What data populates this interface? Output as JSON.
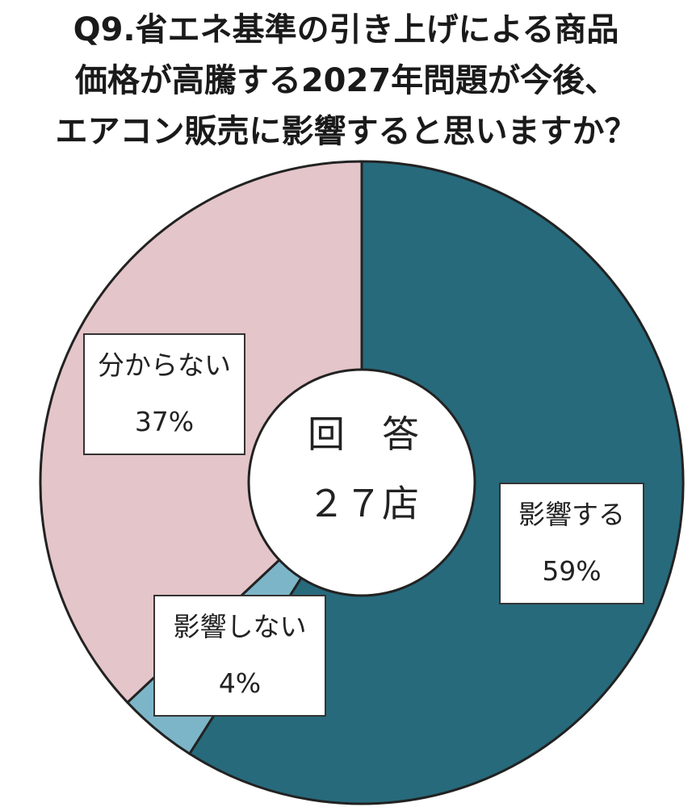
{
  "title_lines": [
    "Q9.省エネ基準の引き上げによる商品",
    "価格が高騰する2027年問題が今後、",
    "エアコン販売に影響すると思いますか？"
  ],
  "center": {
    "line1": "回　答",
    "line2": "２７店"
  },
  "labels": {
    "affect": {
      "name": "影響する",
      "pct": "59%"
    },
    "no_affect": {
      "name": "影響しない",
      "pct": "4%"
    },
    "unknown": {
      "name": "分からない",
      "pct": "37%"
    }
  },
  "chart_data": {
    "type": "pie",
    "title": "Q9.省エネ基準の引き上げによる商品価格が高騰する2027年問題が今後、エアコン販売に影響すると思いますか？",
    "center_label": "回　答 ２７店",
    "start_angle": "12 o'clock",
    "direction": "clockwise",
    "slices": [
      {
        "label": "影響する",
        "value": 59,
        "color": "#276a7c"
      },
      {
        "label": "影響しない",
        "value": 4,
        "color": "#7db5c8"
      },
      {
        "label": "分からない",
        "value": 37,
        "color": "#e4c5c9"
      }
    ]
  }
}
